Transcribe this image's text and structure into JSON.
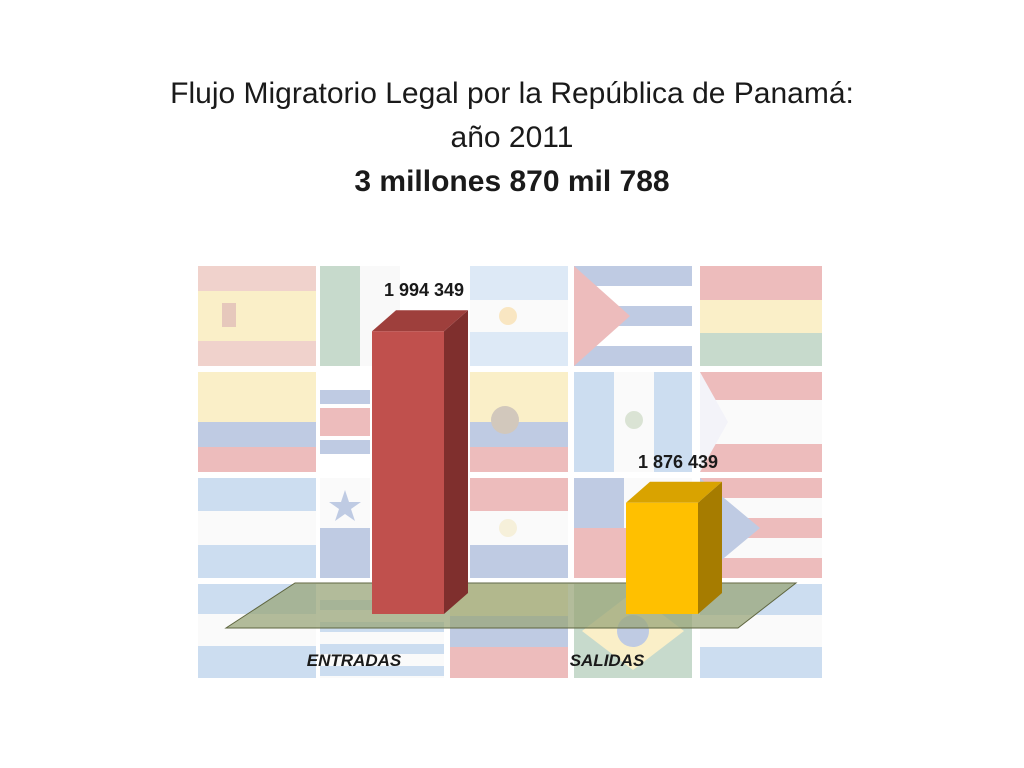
{
  "slide": {
    "title_line1": "Flujo Migratorio Legal por la República de Panamá:",
    "title_line2": "año 2011",
    "title_total": "3 millones 870 mil 788"
  },
  "colors": {
    "entradas_front": "#c0504d",
    "entradas_side": "#7f2f2d",
    "entradas_top": "#9e3f3c",
    "salidas_front": "#ffc000",
    "salidas_side": "#a67c00",
    "salidas_top": "#d9a300",
    "floor": "#9aa67a"
  },
  "chart_data": {
    "type": "bar",
    "style": "3d",
    "categories": [
      "ENTRADAS",
      "SALIDAS"
    ],
    "values": [
      1994349,
      1876439
    ],
    "data_labels": [
      "1 994 349",
      "1 876 439"
    ],
    "ylim": [
      1800000,
      2000000
    ],
    "grid": false,
    "legend": "none"
  }
}
